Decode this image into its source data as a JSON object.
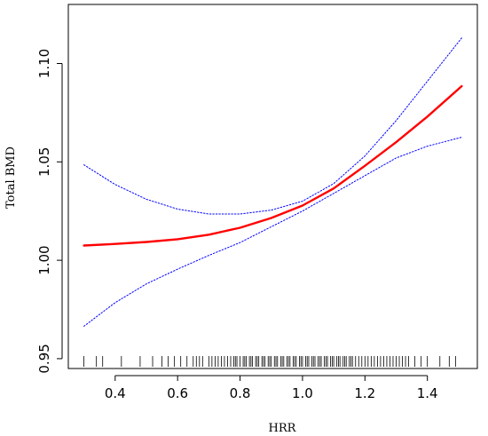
{
  "chart_data": {
    "type": "line",
    "xlabel": "HRR",
    "ylabel": "Total BMD",
    "xlim": [
      0.25,
      1.56
    ],
    "ylim": [
      0.945,
      1.13
    ],
    "x_ticks": [
      0.4,
      0.6,
      0.8,
      1.0,
      1.2,
      1.4
    ],
    "x_tick_labels": [
      "0.4",
      "0.6",
      "0.8",
      "1.0",
      "1.2",
      "1.4"
    ],
    "y_ticks": [
      0.95,
      1.0,
      1.05,
      1.1
    ],
    "y_tick_labels": [
      "0.95",
      "1.00",
      "1.05",
      "1.10"
    ],
    "grid": false,
    "colors": {
      "fit": "#ff0000",
      "ci": "#0000ff",
      "axis": "#000000",
      "rug": "#000000"
    },
    "series": [
      {
        "role": "fit",
        "x": [
          0.3,
          0.4,
          0.5,
          0.6,
          0.7,
          0.8,
          0.9,
          1.0,
          1.1,
          1.2,
          1.3,
          1.4,
          1.51
        ],
        "y": [
          1.0075,
          1.0083,
          1.0093,
          1.0107,
          1.013,
          1.0165,
          1.0215,
          1.0278,
          1.0365,
          1.048,
          1.06,
          1.073,
          1.0885
        ]
      },
      {
        "role": "upper-ci",
        "x": [
          0.3,
          0.4,
          0.5,
          0.6,
          0.7,
          0.8,
          0.9,
          1.0,
          1.1,
          1.2,
          1.3,
          1.4,
          1.51
        ],
        "y": [
          1.0485,
          1.0385,
          1.031,
          1.026,
          1.0235,
          1.0235,
          1.0255,
          1.03,
          1.039,
          1.053,
          1.071,
          1.091,
          1.113
        ]
      },
      {
        "role": "lower-ci",
        "x": [
          0.3,
          0.4,
          0.5,
          0.6,
          0.7,
          0.8,
          0.9,
          1.0,
          1.1,
          1.2,
          1.3,
          1.4,
          1.51
        ],
        "y": [
          0.9665,
          0.9785,
          0.988,
          0.9955,
          1.0025,
          1.009,
          1.017,
          1.025,
          1.034,
          1.043,
          1.052,
          1.058,
          1.0625
        ]
      }
    ],
    "rug_x": [
      0.3,
      0.34,
      0.36,
      0.42,
      0.48,
      0.52,
      0.55,
      0.57,
      0.59,
      0.61,
      0.63,
      0.65,
      0.66,
      0.67,
      0.68,
      0.7,
      0.71,
      0.72,
      0.73,
      0.74,
      0.75,
      0.76,
      0.77,
      0.78,
      0.785,
      0.79,
      0.8,
      0.81,
      0.815,
      0.82,
      0.83,
      0.835,
      0.84,
      0.85,
      0.855,
      0.86,
      0.87,
      0.875,
      0.88,
      0.89,
      0.895,
      0.9,
      0.91,
      0.915,
      0.92,
      0.93,
      0.935,
      0.94,
      0.95,
      0.955,
      0.96,
      0.97,
      0.975,
      0.98,
      0.99,
      0.995,
      1.0,
      1.01,
      1.015,
      1.02,
      1.03,
      1.035,
      1.04,
      1.05,
      1.055,
      1.06,
      1.07,
      1.075,
      1.08,
      1.09,
      1.095,
      1.1,
      1.11,
      1.115,
      1.12,
      1.13,
      1.135,
      1.14,
      1.15,
      1.155,
      1.16,
      1.17,
      1.18,
      1.19,
      1.2,
      1.21,
      1.22,
      1.23,
      1.24,
      1.25,
      1.26,
      1.27,
      1.28,
      1.29,
      1.3,
      1.31,
      1.32,
      1.33,
      1.34,
      1.36,
      1.38,
      1.4,
      1.44,
      1.47,
      1.49
    ]
  }
}
